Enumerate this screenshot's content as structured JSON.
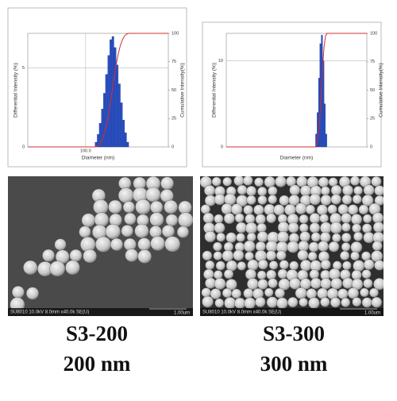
{
  "chart_data": [
    {
      "type": "histogram",
      "xlabel": "Diameter (nm)",
      "ylabel": "Differential Intensity (%)",
      "y2label": "Cumulative Intensity(%)",
      "x_scale": "log",
      "xlim": [
        20,
        1000
      ],
      "xticks": [
        {
          "value": 100,
          "label": "100.0"
        }
      ],
      "ylim": [
        0,
        7.2
      ],
      "yticks": [
        0,
        5
      ],
      "y2lim": [
        0,
        100
      ],
      "y2ticks": [
        0,
        25,
        50,
        75,
        100
      ],
      "grid": true,
      "color": "#2a4fc0",
      "bins": [
        130,
        138,
        146,
        155,
        164,
        174,
        185,
        196,
        208,
        220,
        234,
        248,
        263,
        279,
        296,
        313,
        332
      ],
      "values": [
        0.3,
        0.8,
        1.5,
        2.4,
        3.4,
        4.6,
        5.8,
        6.8,
        7.0,
        6.3,
        5.2,
        4.0,
        2.8,
        1.7,
        0.9,
        0.3
      ],
      "cumulative": {
        "color": "#d03030",
        "axis": "y2",
        "x": [
          20,
          130,
          138,
          146,
          155,
          164,
          174,
          185,
          196,
          208,
          220,
          234,
          248,
          263,
          279,
          296,
          313,
          332,
          1000
        ],
        "values": [
          0,
          0,
          0.6,
          2.0,
          4.8,
          9.3,
          15.6,
          24.1,
          34.9,
          47.5,
          60.5,
          72.2,
          81.9,
          89.3,
          94.5,
          97.7,
          99.4,
          100,
          100
        ]
      }
    },
    {
      "type": "histogram",
      "xlabel": "Diameter (nm)",
      "ylabel": "Differential Intensity (%)",
      "y2label": "Cumulative Intensity(%)",
      "x_scale": "log",
      "xlim": [
        20,
        1000
      ],
      "ylim": [
        0,
        13.2
      ],
      "yticks": [
        0,
        10
      ],
      "y2lim": [
        0,
        100
      ],
      "y2ticks": [
        0,
        25,
        50,
        75,
        100
      ],
      "grid": true,
      "color": "#2a4fc0",
      "bins": [
        240,
        250,
        260,
        270,
        281,
        292,
        304,
        316,
        329
      ],
      "values": [
        1.5,
        4,
        8,
        12,
        13,
        10,
        5,
        1.5
      ],
      "cumulative": {
        "color": "#d03030",
        "axis": "y2",
        "x": [
          20,
          240,
          250,
          260,
          270,
          281,
          292,
          304,
          316,
          329,
          1000
        ],
        "values": [
          0,
          0,
          2.7,
          10,
          24.5,
          46.4,
          70,
          88.2,
          97.3,
          100,
          100
        ]
      }
    }
  ],
  "images": [
    {
      "info": "SU8010 10.0kV 8.0mm x40.0k SE(U)",
      "scale": "1.00um"
    },
    {
      "info": "SU8010 10.0kV 8.0mm x40.0k SE(U)",
      "scale": "1.00um"
    }
  ],
  "labels": [
    {
      "name": "S3-200",
      "size": "200 nm"
    },
    {
      "name": "S3-300",
      "size": "300 nm"
    }
  ]
}
